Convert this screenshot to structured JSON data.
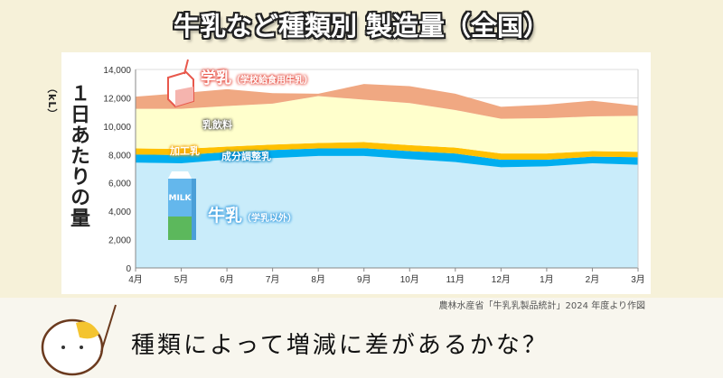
{
  "title": "牛乳など種類別 製造量（全国）",
  "source_note": "農林水産省「牛乳乳製品統計」2024 年度より作図",
  "caption": "種類によって増減に差があるかな？",
  "colors": {
    "background": "#f6f1d9",
    "gakunyu": "#f0a882",
    "nyuinryo": "#ffffcc",
    "kakonyu": "#ffc000",
    "seibun": "#00aeef",
    "gyunyu": "#c9ecfa"
  },
  "labels": {
    "gakunyu": "学乳",
    "gakunyu_sub": "（学校給食用牛乳）",
    "nyuinryo": "乳飲料",
    "kakonyu": "加工乳",
    "seibun": "成分調整乳",
    "gyunyu": "牛乳",
    "gyunyu_sub": "（学乳以外）",
    "milk_carton": "MILK"
  },
  "chart_data": {
    "type": "area",
    "stacked": true,
    "categories": [
      "4月",
      "5月",
      "6月",
      "7月",
      "8月",
      "9月",
      "10月",
      "11月",
      "12月",
      "1月",
      "2月",
      "3月"
    ],
    "ylabel": "１日あたりの量",
    "yunit": "（kL）",
    "ylim": [
      0,
      14000
    ],
    "yticks": [
      0,
      2000,
      4000,
      6000,
      8000,
      10000,
      12000,
      14000
    ],
    "ytick_labels": [
      "0",
      "2,000",
      "4,000",
      "6,000",
      "8,000",
      "10,000",
      "12,000",
      "14,000"
    ],
    "grid": true,
    "series": [
      {
        "name": "牛乳（学乳以外）",
        "color": "#c9ecfa",
        "values": [
          7430,
          7380,
          7640,
          7750,
          7900,
          7900,
          7680,
          7470,
          7100,
          7170,
          7380,
          7280
        ]
      },
      {
        "name": "成分調整乳",
        "color": "#00aeef",
        "values": [
          570,
          580,
          530,
          570,
          530,
          550,
          560,
          600,
          540,
          470,
          470,
          530
        ]
      },
      {
        "name": "加工乳",
        "color": "#ffc000",
        "values": [
          430,
          430,
          390,
          380,
          380,
          430,
          420,
          420,
          430,
          430,
          390,
          380
        ]
      },
      {
        "name": "乳飲料",
        "color": "#ffffcc",
        "values": [
          2790,
          2830,
          2860,
          2890,
          3310,
          2990,
          2970,
          2650,
          2450,
          2490,
          2450,
          2540
        ]
      },
      {
        "name": "学乳（学校給食用牛乳）",
        "color": "#f0a882",
        "values": [
          860,
          1110,
          1190,
          740,
          170,
          1100,
          1190,
          1150,
          850,
          960,
          1110,
          710
        ]
      }
    ]
  }
}
